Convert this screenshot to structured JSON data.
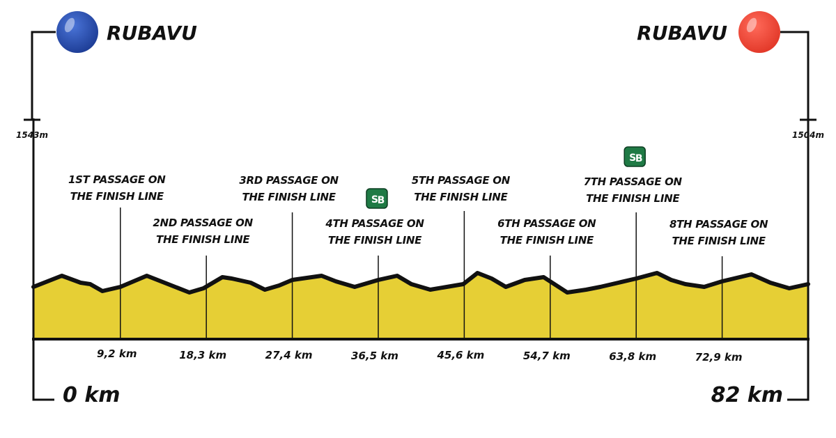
{
  "start": {
    "city": "RUBAVU",
    "altitude": "1543m",
    "distance": "0 km",
    "color": "#2a4fb0"
  },
  "finish": {
    "city": "RUBAVU",
    "altitude": "1504m",
    "distance": "82 km",
    "color": "#f04a3a"
  },
  "colors": {
    "profile_fill": "#e6cf35",
    "profile_stroke": "#111111",
    "sprint_badge": "#1f7a45"
  },
  "chart_data": {
    "type": "area",
    "total_km": 82,
    "profile": {
      "x": [
        0,
        3,
        5,
        6,
        7.3,
        9.2,
        12,
        15,
        16.5,
        18,
        20,
        21,
        23,
        24.5,
        26,
        27.4,
        30.5,
        32,
        34,
        36.5,
        38.5,
        40,
        42,
        45.5,
        47,
        48.5,
        50,
        52,
        54,
        56.5,
        58.5,
        60,
        63.8,
        66,
        67.5,
        69,
        71,
        72.9,
        76,
        78,
        80,
        82
      ],
      "y": [
        10,
        18,
        13,
        12,
        7,
        10,
        18,
        10,
        6,
        9,
        17,
        16,
        13,
        8,
        11,
        15,
        18,
        14,
        10,
        15,
        18,
        12,
        8,
        12,
        20,
        16,
        10,
        15,
        17,
        6,
        8,
        10,
        16,
        20,
        15,
        12,
        10,
        14,
        19,
        13,
        9,
        12
      ]
    },
    "passages": [
      {
        "label": "1ST PASSAGE ON",
        "label2": "THE FINISH LINE",
        "km": 9.2,
        "km_label": "9,2 km",
        "sprint": false
      },
      {
        "label": "2ND PASSAGE ON",
        "label2": "THE FINISH LINE",
        "km": 18.3,
        "km_label": "18,3 km",
        "sprint": false
      },
      {
        "label": "3RD PASSAGE ON",
        "label2": "THE FINISH LINE",
        "km": 27.4,
        "km_label": "27,4 km",
        "sprint": false
      },
      {
        "label": "4TH PASSAGE ON",
        "label2": "THE FINISH LINE",
        "km": 36.5,
        "km_label": "36,5 km",
        "sprint": true
      },
      {
        "label": "5TH PASSAGE ON",
        "label2": "THE FINISH LINE",
        "km": 45.6,
        "km_label": "45,6 km",
        "sprint": false
      },
      {
        "label": "6TH PASSAGE ON",
        "label2": "THE FINISH LINE",
        "km": 54.7,
        "km_label": "54,7 km",
        "sprint": false
      },
      {
        "label": "7TH PASSAGE ON",
        "label2": "THE FINISH LINE",
        "km": 63.8,
        "km_label": "63,8 km",
        "sprint": true
      },
      {
        "label": "8TH PASSAGE ON",
        "label2": "THE FINISH LINE",
        "km": 72.9,
        "km_label": "72,9 km",
        "sprint": false
      }
    ],
    "sprint_badge": {
      "main": "S",
      "sub": "B"
    }
  }
}
